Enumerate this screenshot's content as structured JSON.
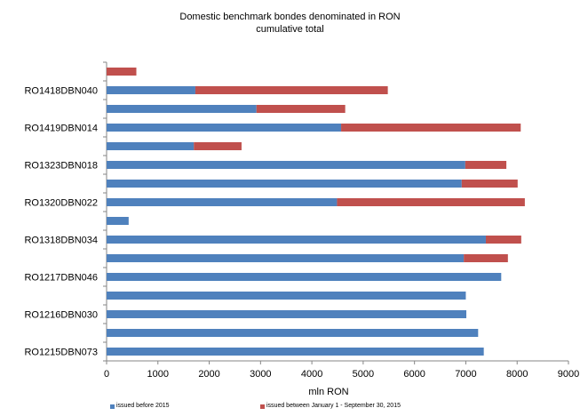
{
  "chart_data": {
    "type": "bar",
    "orientation": "horizontal",
    "stacked": true,
    "title": "Domestic benchmark bondes denominated in RON",
    "subtitle": "cumulative total",
    "xlabel": "mln RON",
    "ylabel": "",
    "xlim": [
      0,
      9000
    ],
    "xticks": [
      0,
      1000,
      2000,
      3000,
      4000,
      5000,
      6000,
      7000,
      8000,
      9000
    ],
    "grid": false,
    "legend_position": "bottom",
    "categories": [
      "",
      "RO1418DBN040",
      "",
      "RO1419DBN014",
      "",
      "RO1323DBN018",
      "",
      "RO1320DBN022",
      "",
      "RO1318DBN034",
      "",
      "RO1217DBN046",
      "",
      "RO1216DBN030",
      "",
      "RO1215DBN073"
    ],
    "series": [
      {
        "name": "issued before 2015",
        "color": "#4F81BD",
        "values": [
          0,
          1730,
          2920,
          4570,
          1700,
          6990,
          6920,
          4490,
          430,
          7390,
          6960,
          7690,
          7000,
          7010,
          7240,
          7350
        ]
      },
      {
        "name": "issued between January 1 - September 30, 2015",
        "color": "#C0504D",
        "values": [
          580,
          3750,
          1730,
          3500,
          930,
          800,
          1090,
          3660,
          0,
          690,
          860,
          0,
          0,
          0,
          0,
          0
        ]
      }
    ]
  },
  "legend": {
    "item_1": "issued before 2015",
    "item_2": "issued between January 1 - September 30, 2015"
  }
}
